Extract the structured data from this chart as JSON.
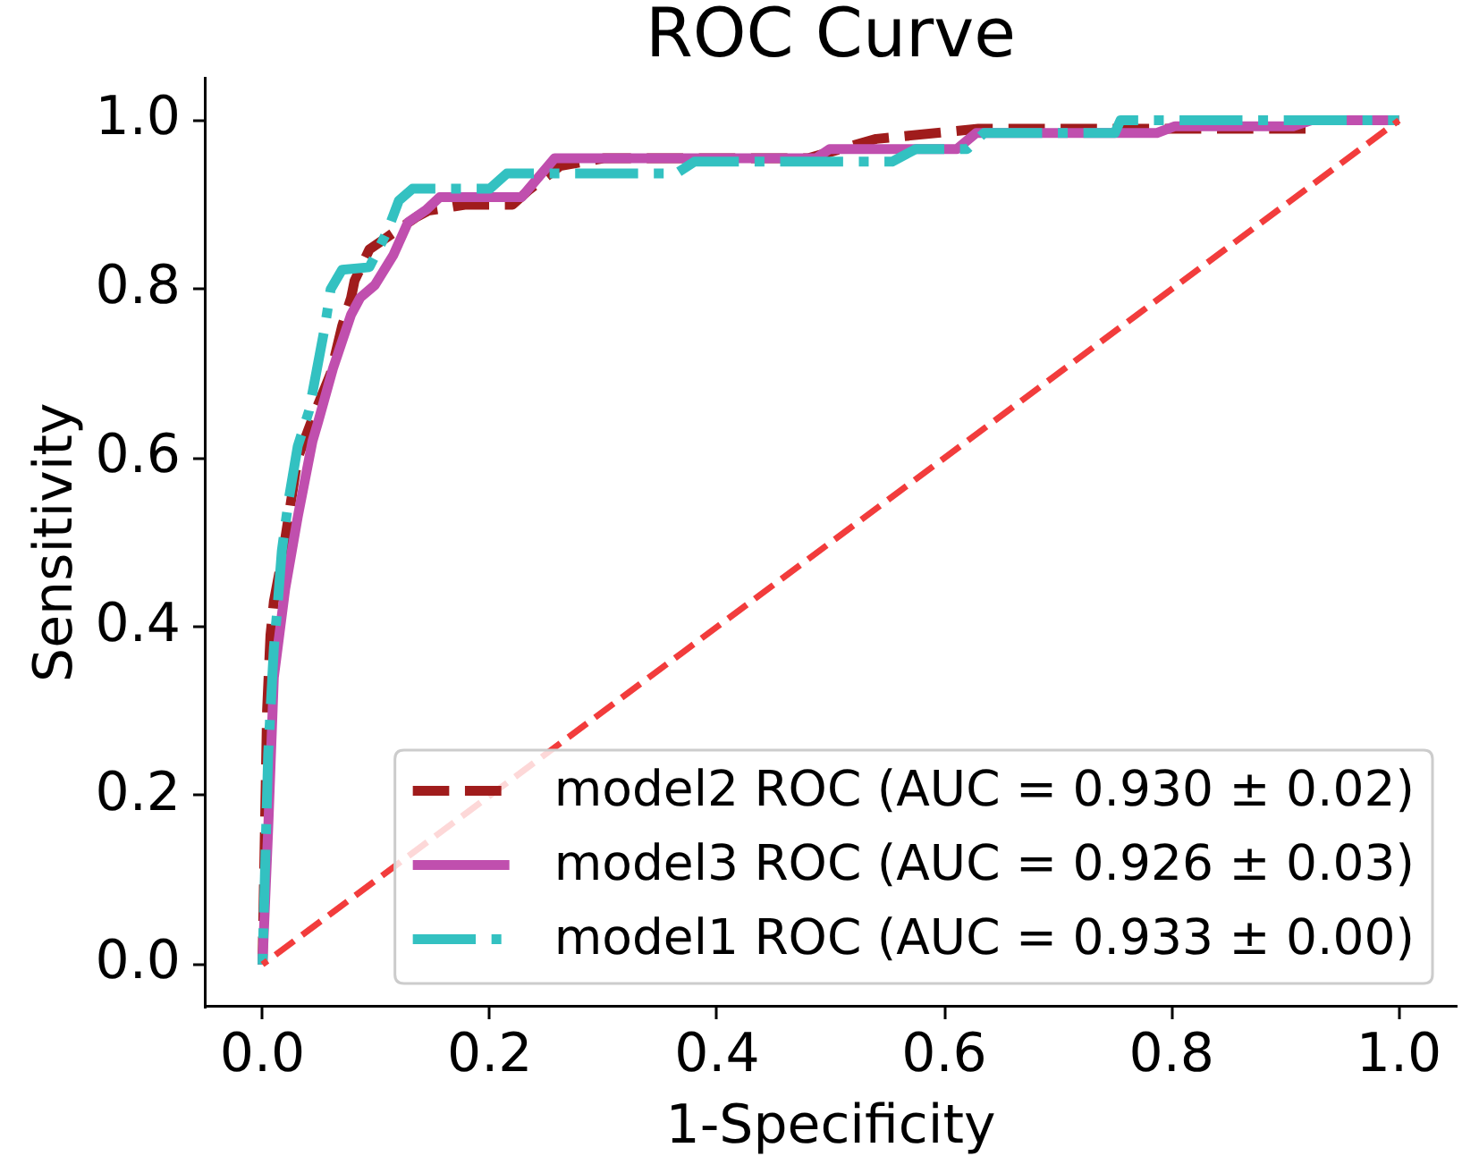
{
  "chart_data": {
    "type": "line",
    "title": "ROC Curve",
    "xlabel": "1-Specificity",
    "ylabel": "Sensitivity",
    "xlim": [
      -0.05,
      1.05
    ],
    "ylim": [
      -0.05,
      1.05
    ],
    "xticks": [
      {
        "value": 0,
        "label": "0.0"
      },
      0.2,
      0.4,
      0.6,
      0.8,
      {
        "value": 1,
        "label": "1.0"
      }
    ],
    "yticks": [
      {
        "value": 0,
        "label": "0.0"
      },
      0.2,
      0.4,
      0.6,
      0.8,
      {
        "value": 1,
        "label": "1.0"
      }
    ],
    "legend": "bottom right",
    "marker": "none",
    "series": [
      {
        "name": "model2 ROC (AUC = 0.930 ± 0.02)",
        "color": "#a01c1c",
        "line_style": "dashed",
        "x": [
          0,
          0.004,
          0.007,
          0.01,
          0.018,
          0.031,
          0.045,
          0.06,
          0.07,
          0.078,
          0.081,
          0.094,
          0.11,
          0.136,
          0.146,
          0.178,
          0.22,
          0.234,
          0.262,
          0.3,
          0.48,
          0.493,
          0.54,
          0.63,
          0.92,
          0.93,
          1
        ],
        "values": [
          0,
          0.3,
          0.39,
          0.43,
          0.487,
          0.6,
          0.65,
          0.7,
          0.756,
          0.79,
          0.81,
          0.847,
          0.862,
          0.886,
          0.893,
          0.9,
          0.9,
          0.917,
          0.946,
          0.955,
          0.955,
          0.96,
          0.978,
          0.99,
          0.99,
          1,
          1
        ]
      },
      {
        "name": "model3 ROC (AUC = 0.926 ± 0.03)",
        "color": "#c04fae",
        "line_style": "solid",
        "x": [
          0,
          0.005,
          0.01,
          0.02,
          0.031,
          0.044,
          0.049,
          0.062,
          0.078,
          0.086,
          0.099,
          0.115,
          0.128,
          0.144,
          0.156,
          0.228,
          0.257,
          0.487,
          0.499,
          0.611,
          0.628,
          0.787,
          0.803,
          0.907,
          0.923,
          1
        ],
        "values": [
          0,
          0.16,
          0.34,
          0.445,
          0.53,
          0.62,
          0.643,
          0.706,
          0.77,
          0.79,
          0.805,
          0.84,
          0.879,
          0.894,
          0.909,
          0.909,
          0.955,
          0.955,
          0.966,
          0.966,
          0.985,
          0.985,
          0.993,
          0.993,
          1,
          1
        ]
      },
      {
        "name": "model1 ROC (AUC = 0.933 ± 0.00)",
        "color": "#33c1c1",
        "line_style": "dashdot",
        "x": [
          0,
          0.005,
          0.01,
          0.013,
          0.017,
          0.023,
          0.031,
          0.041,
          0.055,
          0.06,
          0.07,
          0.094,
          0.11,
          0.12,
          0.132,
          0.2,
          0.215,
          0.364,
          0.38,
          0.554,
          0.575,
          0.62,
          0.635,
          0.75,
          0.755,
          1
        ],
        "values": [
          0,
          0.25,
          0.375,
          0.42,
          0.49,
          0.55,
          0.614,
          0.656,
          0.756,
          0.8,
          0.823,
          0.826,
          0.869,
          0.905,
          0.919,
          0.919,
          0.937,
          0.937,
          0.951,
          0.951,
          0.966,
          0.966,
          0.985,
          0.985,
          1,
          1
        ]
      },
      {
        "color": "#f23c3c",
        "line_style": "dashed",
        "x": [
          0,
          1
        ],
        "values": [
          0,
          1
        ]
      }
    ]
  }
}
